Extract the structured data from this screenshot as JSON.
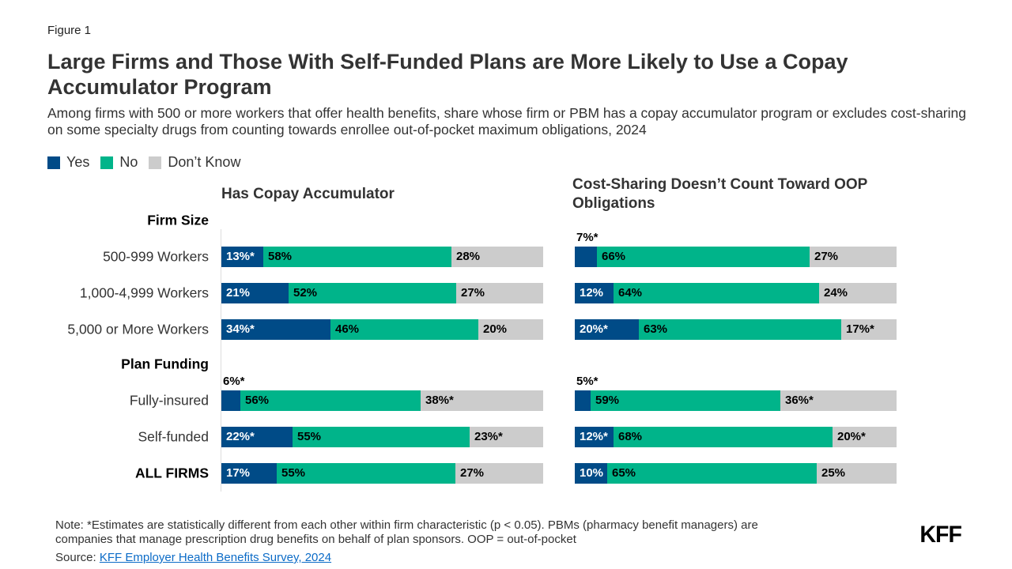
{
  "figure_label": "Figure 1",
  "title": "Large Firms and Those With Self-Funded Plans are More Likely to Use a Copay Accumulator Program",
  "subtitle": "Among firms with 500 or more workers that offer health benefits, share whose firm or PBM has a copay accumulator program or excludes cost-sharing on some specialty drugs from counting towards enrollee out-of-pocket maximum obligations, 2024",
  "colors": {
    "Yes": "#004b87",
    "No": "#00b48a",
    "Don't Know": "#cccccc"
  },
  "chart_data": {
    "type": "bar",
    "orientation": "horizontal-stacked-100",
    "legend": [
      "Yes",
      "No",
      "Don’t Know"
    ],
    "legend_placement": "top-left",
    "groups": [
      "Firm Size",
      "Plan Funding"
    ],
    "categories": [
      "500-999 Workers",
      "1,000-4,999 Workers",
      "5,000 or More Workers",
      "Fully-insured",
      "Self-funded",
      "ALL FIRMS"
    ],
    "panels": [
      {
        "title": "Has Copay Accumulator",
        "series": [
          {
            "name": "Yes",
            "values": [
              13,
              21,
              34,
              6,
              22,
              17
            ],
            "labels": [
              "13%*",
              "21%",
              "34%*",
              "6%*",
              "22%*",
              "17%"
            ]
          },
          {
            "name": "No",
            "values": [
              58,
              52,
              46,
              56,
              55,
              55
            ],
            "labels": [
              "58%",
              "52%",
              "46%",
              "56%",
              "55%",
              "55%"
            ]
          },
          {
            "name": "Don’t Know",
            "values": [
              28,
              27,
              20,
              38,
              23,
              27
            ],
            "labels": [
              "28%",
              "27%",
              "20%",
              "38%*",
              "23%*",
              "27%"
            ]
          }
        ]
      },
      {
        "title": "Cost-Sharing Doesn’t Count Toward OOP Obligations",
        "series": [
          {
            "name": "Yes",
            "values": [
              7,
              12,
              20,
              5,
              12,
              10
            ],
            "labels": [
              "7%*",
              "12%",
              "20%*",
              "5%*",
              "12%*",
              "10%"
            ]
          },
          {
            "name": "No",
            "values": [
              66,
              64,
              63,
              59,
              68,
              65
            ],
            "labels": [
              "66%",
              "64%",
              "63%",
              "59%",
              "68%",
              "65%"
            ]
          },
          {
            "name": "Don’t Know",
            "values": [
              27,
              24,
              17,
              36,
              20,
              25
            ],
            "labels": [
              "27%",
              "24%",
              "17%*",
              "36%*",
              "20%*",
              "25%"
            ]
          }
        ]
      }
    ]
  },
  "note": "Note: *Estimates are statistically different from each other within firm characteristic (p < 0.05). PBMs (pharmacy benefit managers) are companies that manage prescription drug benefits on behalf of plan sponsors. OOP = out-of-pocket",
  "source_prefix": "Source: ",
  "source_link": "KFF Employer Health Benefits Survey, 2024",
  "logo": "KFF"
}
